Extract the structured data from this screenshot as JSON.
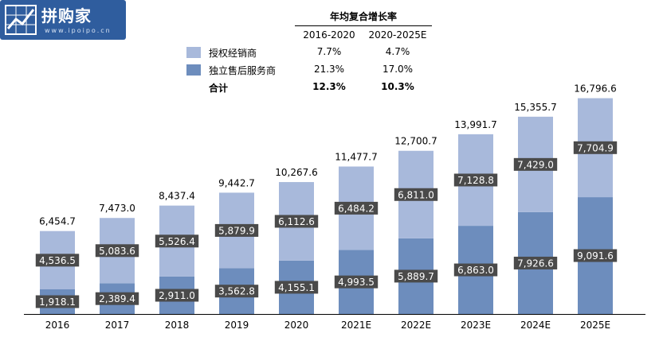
{
  "logo": {
    "text": "拼购家",
    "url": "www.ipoipo.cn"
  },
  "cagr_table": {
    "title": "年均复合增长率",
    "columns": [
      "2016-2020",
      "2020-2025E"
    ],
    "rows": [
      {
        "label": "授权经销商",
        "values": [
          "7.7%",
          "4.7%"
        ],
        "color": "#a8b9db",
        "bold": false
      },
      {
        "label": "独立售后服务商",
        "values": [
          "21.3%",
          "17.0%"
        ],
        "color": "#6d8dbd",
        "bold": false
      },
      {
        "label": "合计",
        "values": [
          "12.3%",
          "10.3%"
        ],
        "color": "",
        "bold": true
      }
    ]
  },
  "chart_data": {
    "type": "bar",
    "stacked": true,
    "categories": [
      "2016",
      "2017",
      "2018",
      "2019",
      "2020",
      "2021E",
      "2022E",
      "2023E",
      "2024E",
      "2025E"
    ],
    "series": [
      {
        "name": "独立售后服务商",
        "values": [
          1918.1,
          2389.4,
          2911.0,
          3562.8,
          4155.1,
          4993.5,
          5889.7,
          6863.0,
          7926.6,
          9091.6
        ],
        "color": "#6d8dbd"
      },
      {
        "name": "授权经销商",
        "values": [
          4536.5,
          5083.6,
          5526.4,
          5879.9,
          6112.6,
          6484.2,
          6811.0,
          7128.8,
          7429.0,
          7704.9
        ],
        "color": "#a8b9db"
      }
    ],
    "totals": [
      6454.7,
      7473.0,
      8437.4,
      9442.7,
      10267.6,
      11477.7,
      12700.7,
      13991.7,
      15355.7,
      16796.6
    ],
    "ylim": [
      0,
      18500
    ]
  }
}
